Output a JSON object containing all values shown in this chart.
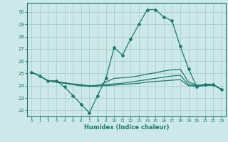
{
  "x": [
    0,
    1,
    2,
    3,
    4,
    5,
    6,
    7,
    8,
    9,
    10,
    11,
    12,
    13,
    14,
    15,
    16,
    17,
    18,
    19,
    20,
    21,
    22,
    23
  ],
  "line1": [
    25.1,
    24.8,
    24.4,
    24.4,
    23.9,
    23.2,
    22.5,
    21.8,
    23.2,
    24.6,
    27.1,
    26.5,
    27.8,
    29.0,
    30.2,
    30.2,
    29.6,
    29.3,
    27.2,
    25.4,
    23.9,
    24.1,
    24.1,
    23.7
  ],
  "line2": [
    25.1,
    24.8,
    24.4,
    24.35,
    24.25,
    24.15,
    24.1,
    24.0,
    24.05,
    24.1,
    24.15,
    24.2,
    24.3,
    24.4,
    24.5,
    24.6,
    24.7,
    24.8,
    24.85,
    24.1,
    24.0,
    24.1,
    24.1,
    23.7
  ],
  "line3": [
    25.1,
    24.8,
    24.4,
    24.3,
    24.2,
    24.1,
    24.0,
    23.95,
    24.0,
    24.0,
    24.05,
    24.1,
    24.15,
    24.2,
    24.3,
    24.35,
    24.4,
    24.45,
    24.5,
    24.0,
    23.95,
    24.0,
    24.05,
    23.7
  ],
  "line4": [
    25.1,
    24.8,
    24.4,
    24.3,
    24.2,
    24.1,
    24.0,
    23.95,
    23.95,
    24.3,
    24.6,
    24.65,
    24.7,
    24.8,
    24.95,
    25.05,
    25.2,
    25.3,
    25.35,
    24.3,
    24.05,
    24.1,
    24.1,
    23.7
  ],
  "line_color": "#1a7a6e",
  "bg_color": "#cce8e8",
  "grid_color": "#aacfcf",
  "xlabel": "Humidex (Indice chaleur)",
  "ylim": [
    21.5,
    30.75
  ],
  "xlim": [
    -0.5,
    23.5
  ],
  "yticks": [
    22,
    23,
    24,
    25,
    26,
    27,
    28,
    29,
    30
  ],
  "xticks": [
    0,
    1,
    2,
    3,
    4,
    5,
    6,
    7,
    8,
    9,
    10,
    11,
    12,
    13,
    14,
    15,
    16,
    17,
    18,
    19,
    20,
    21,
    22,
    23
  ]
}
